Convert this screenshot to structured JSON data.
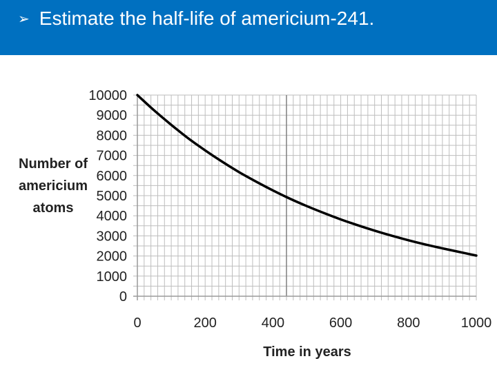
{
  "slide": {
    "bullet_icon": "arrowhead-bullet-icon",
    "title": "Estimate the half-life of americium-241.",
    "header_color": "#0070c0"
  },
  "chart_data": {
    "type": "line",
    "title": "",
    "xlabel": "Time in years",
    "ylabel_lines": [
      "Number of",
      "americium",
      "atoms"
    ],
    "xlim": [
      0,
      1000
    ],
    "ylim": [
      0,
      10000
    ],
    "x_ticks": [
      "0",
      "200",
      "400",
      "600",
      "800",
      "1000"
    ],
    "y_ticks": [
      "0",
      "1000",
      "2000",
      "3000",
      "4000",
      "5000",
      "6000",
      "7000",
      "8000",
      "9000",
      "10000"
    ],
    "grid": true,
    "minor_grid_x_step": 20,
    "minor_grid_y_step": 500,
    "highlight_x": 440,
    "line_color": "#000000",
    "x": [
      0,
      50,
      100,
      150,
      200,
      250,
      300,
      350,
      400,
      450,
      500,
      550,
      600,
      650,
      700,
      750,
      800,
      850,
      900,
      950,
      1000
    ],
    "y": [
      10000,
      9230,
      8520,
      7850,
      7250,
      6690,
      6170,
      5700,
      5260,
      4850,
      4480,
      4140,
      3820,
      3530,
      3260,
      3010,
      2780,
      2570,
      2380,
      2200,
      2020
    ]
  }
}
